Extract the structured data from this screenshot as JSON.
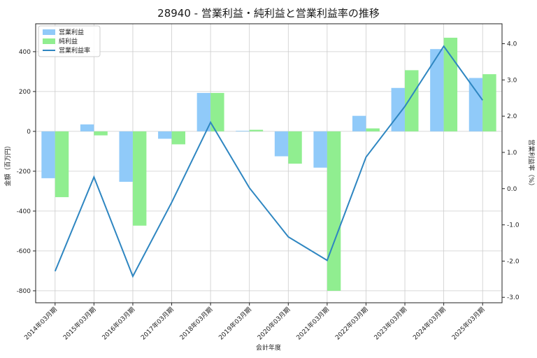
{
  "chart_data": {
    "type": "bar",
    "title": "28940 - 営業利益・純利益と営業利益率の推移",
    "xlabel": "会計年度",
    "ylabel": "金額（百万円）",
    "y2label": "営業利益率（%）",
    "categories": [
      "2014年03月期",
      "2015年03月期",
      "2016年03月期",
      "2017年03月期",
      "2018年03月期",
      "2019年03月期",
      "2020年03月期",
      "2021年03月期",
      "2022年03月期",
      "2023年03月期",
      "2024年03月期",
      "2025年03月期"
    ],
    "series": [
      {
        "name": "営業利益",
        "axis": "left",
        "kind": "bar",
        "color": "#90caf9",
        "values": [
          -235,
          35,
          -253,
          -37,
          193,
          3,
          -125,
          -182,
          78,
          218,
          413,
          268
        ]
      },
      {
        "name": "純利益",
        "axis": "left",
        "kind": "bar",
        "color": "#90ee90",
        "values": [
          -330,
          -20,
          -473,
          -65,
          193,
          8,
          -162,
          -800,
          15,
          307,
          470,
          287
        ]
      },
      {
        "name": "営業利益率",
        "axis": "right",
        "kind": "line",
        "color": "#2e86c1",
        "values": [
          -2.28,
          0.32,
          -2.42,
          -0.38,
          1.83,
          0.02,
          -1.33,
          -1.98,
          0.87,
          2.27,
          3.93,
          2.44
        ]
      }
    ],
    "ylim": [
      -860,
      540
    ],
    "y2lim": [
      -3.15,
      4.55
    ],
    "yticks": [
      -800,
      -600,
      -400,
      -200,
      0,
      200,
      400
    ],
    "y2ticks": [
      -3.0,
      -2.0,
      -1.0,
      0.0,
      1.0,
      2.0,
      3.0,
      4.0
    ],
    "y2tick_labels": [
      "-3.0",
      "-2.0",
      "-1.0",
      "0.0",
      "1.0",
      "2.0",
      "3.0",
      "4.0"
    ],
    "grid": true,
    "legend_position": "top-left"
  }
}
